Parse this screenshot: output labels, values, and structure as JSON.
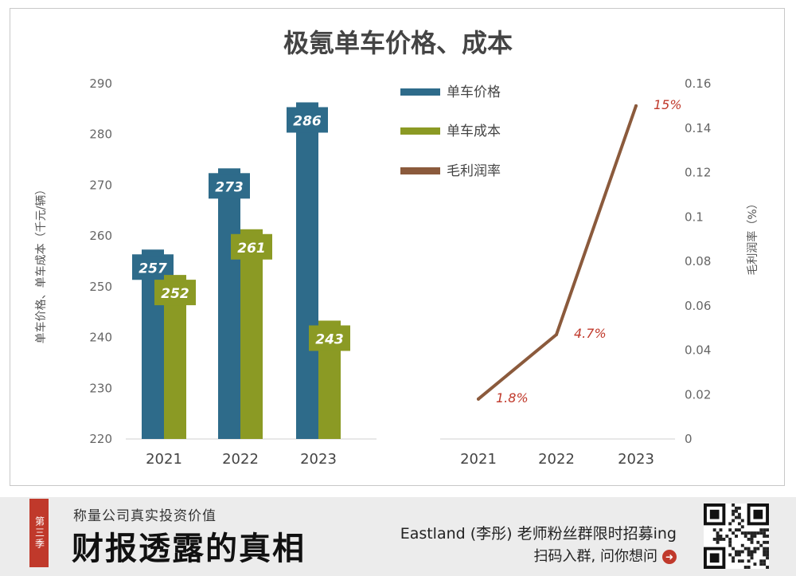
{
  "chart_data": {
    "title": "极氪单车价格、成本",
    "left_chart": {
      "type": "bar",
      "categories": [
        "2021",
        "2022",
        "2023"
      ],
      "series": [
        {
          "name": "单车价格",
          "values": [
            257,
            273,
            286
          ],
          "labels": [
            "257",
            "273",
            "286"
          ],
          "color": "#2e6b8a"
        },
        {
          "name": "单车成本",
          "values": [
            252,
            261,
            243
          ],
          "labels": [
            "252",
            "261",
            "243"
          ],
          "color": "#8b9a24"
        }
      ],
      "ylabel": "单车价格、单车成本（千元/辆）",
      "ylim": [
        220,
        290
      ],
      "yticks": [
        220,
        230,
        240,
        250,
        260,
        270,
        280,
        290
      ]
    },
    "right_chart": {
      "type": "line",
      "categories": [
        "2021",
        "2022",
        "2023"
      ],
      "series": [
        {
          "name": "毛利润率",
          "values": [
            0.018,
            0.047,
            0.15
          ],
          "labels": [
            "1.8%",
            "4.7%",
            "15%"
          ],
          "color": "#8b5a3c"
        }
      ],
      "ylabel": "毛利润率（%）",
      "ylim": [
        0,
        0.16
      ],
      "yticks": [
        "0",
        "0.02",
        "0.04",
        "0.06",
        "0.08",
        "0.1",
        "0.12",
        "0.14",
        "0.16"
      ]
    },
    "legend": [
      "单车价格",
      "单车成本",
      "毛利润率"
    ],
    "label_color": "#c0392b"
  },
  "banner": {
    "badge": "第三季",
    "slogan": "称量公司真实投资价值",
    "brand": "财报透露的真相",
    "recruit": "Eastland (李彤) 老师粉丝群限时招募ing",
    "scan": "扫码入群, 问你想问",
    "arrow_icon": "arrow-right-circle-icon",
    "qr_icon": "qr-code-icon"
  }
}
